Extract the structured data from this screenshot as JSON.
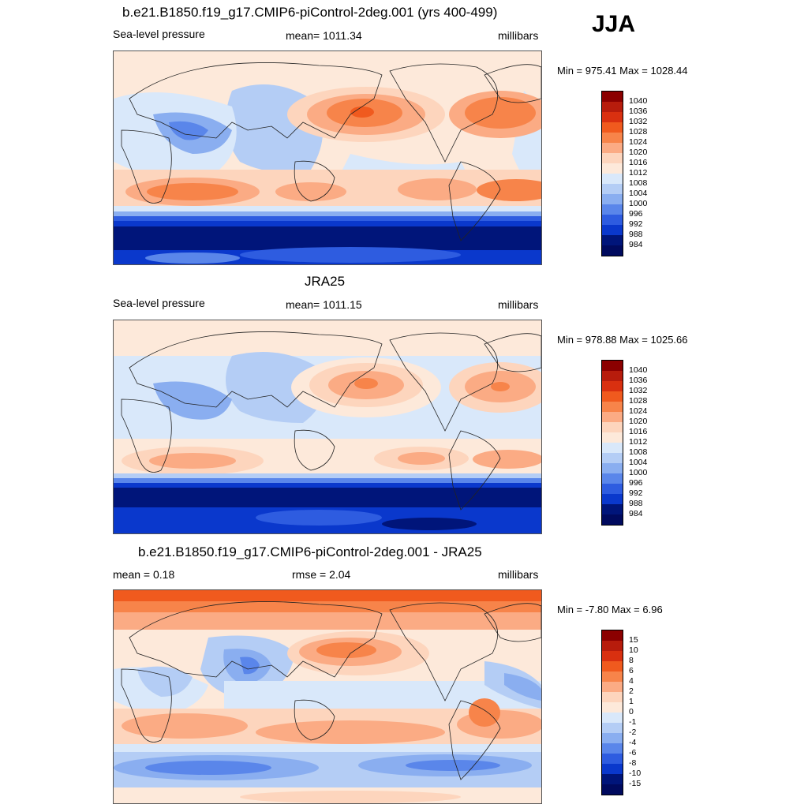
{
  "season": "JJA",
  "panels": [
    {
      "title": "b.e21.B1850.f19_g17.CMIP6-piControl-2deg.001 (yrs 400-499)",
      "left_label": "Sea-level pressure",
      "center_label": "mean= 1011.34",
      "units": "millibars",
      "minmax": "Min = 975.41 Max = 1028.44",
      "colorbar_labels": [
        "1040",
        "1036",
        "1032",
        "1028",
        "1024",
        "1020",
        "1016",
        "1012",
        "1008",
        "1004",
        "1000",
        "996",
        "992",
        "988",
        "984"
      ]
    },
    {
      "title": "JRA25",
      "left_label": "Sea-level pressure",
      "center_label": "mean= 1011.15",
      "units": "millibars",
      "minmax": "Min = 978.88 Max = 1025.66",
      "colorbar_labels": [
        "1040",
        "1036",
        "1032",
        "1028",
        "1024",
        "1020",
        "1016",
        "1012",
        "1008",
        "1004",
        "1000",
        "996",
        "992",
        "988",
        "984"
      ]
    },
    {
      "title": "b.e21.B1850.f19_g17.CMIP6-piControl-2deg.001 - JRA25",
      "left_label": "mean =   0.18",
      "center_label": "rmse =   2.04",
      "units": "millibars",
      "minmax": "Min =  -7.80 Max =   6.96",
      "colorbar_labels": [
        "15",
        "10",
        "8",
        "6",
        "4",
        "2",
        "1",
        "0",
        "-1",
        "-2",
        "-4",
        "-6",
        "-8",
        "-10",
        "-15"
      ]
    }
  ],
  "colors": {
    "abs_scale": [
      "#8b0000",
      "#b71c0c",
      "#d93010",
      "#f05a1e",
      "#f7844a",
      "#fbab84",
      "#fdd5bd",
      "#fde9da",
      "#d9e8fa",
      "#b4cdf5",
      "#8aaef0",
      "#5a86ea",
      "#2e5ce0",
      "#0a38cc",
      "#00157a",
      "#000a5e"
    ],
    "diff_scale": [
      "#8b0000",
      "#b71c0c",
      "#d93010",
      "#f05a1e",
      "#f7844a",
      "#fbab84",
      "#fdd5bd",
      "#fde9da",
      "#d9e8fa",
      "#b4cdf5",
      "#8aaef0",
      "#5a86ea",
      "#2e5ce0",
      "#0a38cc",
      "#00157a",
      "#000a5e"
    ]
  }
}
